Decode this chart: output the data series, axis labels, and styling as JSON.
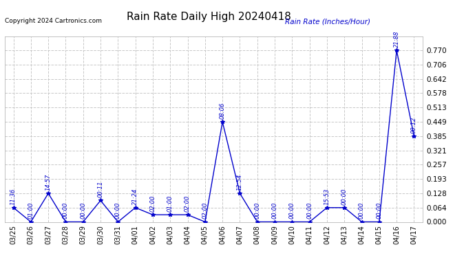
{
  "title": "Rain Rate Daily High 20240418",
  "ylabel": "Rain Rate (Inches/Hour)",
  "copyright": "Copyright 2024 Cartronics.com",
  "x_labels": [
    "03/25",
    "03/26",
    "03/27",
    "03/28",
    "03/29",
    "03/30",
    "03/31",
    "04/01",
    "04/02",
    "04/03",
    "04/04",
    "04/05",
    "04/06",
    "04/07",
    "04/08",
    "04/09",
    "04/10",
    "04/11",
    "04/12",
    "04/13",
    "04/14",
    "04/15",
    "04/16",
    "04/17"
  ],
  "x_values": [
    0,
    1,
    2,
    3,
    4,
    5,
    6,
    7,
    8,
    9,
    10,
    11,
    12,
    13,
    14,
    15,
    16,
    17,
    18,
    19,
    20,
    21,
    22,
    23
  ],
  "y_values": [
    0.064,
    0.0,
    0.128,
    0.0,
    0.0,
    0.096,
    0.0,
    0.064,
    0.032,
    0.032,
    0.032,
    0.0,
    0.449,
    0.128,
    0.0,
    0.0,
    0.0,
    0.0,
    0.064,
    0.064,
    0.0,
    0.0,
    0.77,
    0.385
  ],
  "point_labels": [
    "11:36",
    "01:00",
    "14:57",
    "00:00",
    "00:00",
    "00:11",
    "00:00",
    "21:24",
    "02:00",
    "01:00",
    "02:00",
    "02:00",
    "08:06",
    "12:54",
    "00:00",
    "00:00",
    "00:00",
    "00:00",
    "15:53",
    "00:00",
    "00:00",
    "00:00",
    "21:88",
    "00:12"
  ],
  "line_color": "#0000cc",
  "marker_color": "#0000cc",
  "label_color": "#0000cc",
  "bg_color": "#ffffff",
  "grid_color": "#c8c8c8",
  "ylim": [
    0.0,
    0.834
  ],
  "yticks": [
    0.0,
    0.064,
    0.128,
    0.193,
    0.257,
    0.321,
    0.385,
    0.449,
    0.513,
    0.578,
    0.642,
    0.706,
    0.77
  ],
  "figsize": [
    6.9,
    3.75
  ],
  "dpi": 100
}
